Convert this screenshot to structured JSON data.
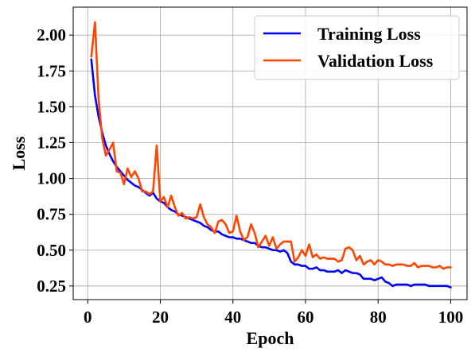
{
  "chart_data": {
    "type": "line",
    "title": "",
    "xlabel": "Epoch",
    "ylabel": "Loss",
    "xlim": [
      -4,
      104.5
    ],
    "ylim": [
      0.155,
      2.195
    ],
    "xticks": [
      0,
      20,
      40,
      60,
      80,
      100
    ],
    "yticks": [
      0.25,
      0.5,
      0.75,
      1.0,
      1.25,
      1.5,
      1.75,
      2.0
    ],
    "xtick_labels": [
      "0",
      "20",
      "40",
      "60",
      "80",
      "100"
    ],
    "ytick_labels": [
      "0.25",
      "0.50",
      "0.75",
      "1.00",
      "1.25",
      "1.50",
      "1.75",
      "2.00"
    ],
    "grid": true,
    "legend": "upper right",
    "x": [
      1,
      2,
      3,
      4,
      5,
      6,
      7,
      8,
      9,
      10,
      11,
      12,
      13,
      14,
      15,
      16,
      17,
      18,
      19,
      20,
      21,
      22,
      23,
      24,
      25,
      26,
      27,
      28,
      29,
      30,
      31,
      32,
      33,
      34,
      35,
      36,
      37,
      38,
      39,
      40,
      41,
      42,
      43,
      44,
      45,
      46,
      47,
      48,
      49,
      50,
      51,
      52,
      53,
      54,
      55,
      56,
      57,
      58,
      59,
      60,
      61,
      62,
      63,
      64,
      65,
      66,
      67,
      68,
      69,
      70,
      71,
      72,
      73,
      74,
      75,
      76,
      77,
      78,
      79,
      80,
      81,
      82,
      83,
      84,
      85,
      86,
      87,
      88,
      89,
      90,
      91,
      92,
      93,
      94,
      95,
      96,
      97,
      98,
      99,
      100
    ],
    "series": [
      {
        "name": "Training Loss",
        "color": "#0000ff",
        "values": [
          1.83,
          1.58,
          1.43,
          1.32,
          1.23,
          1.17,
          1.12,
          1.08,
          1.05,
          1.02,
          0.99,
          0.97,
          0.95,
          0.94,
          0.92,
          0.9,
          0.88,
          0.9,
          0.86,
          0.84,
          0.83,
          0.8,
          0.78,
          0.77,
          0.75,
          0.74,
          0.73,
          0.72,
          0.71,
          0.7,
          0.69,
          0.67,
          0.66,
          0.64,
          0.63,
          0.63,
          0.61,
          0.6,
          0.59,
          0.59,
          0.58,
          0.58,
          0.57,
          0.56,
          0.55,
          0.55,
          0.53,
          0.52,
          0.52,
          0.51,
          0.5,
          0.5,
          0.49,
          0.5,
          0.48,
          0.42,
          0.4,
          0.4,
          0.39,
          0.39,
          0.37,
          0.37,
          0.38,
          0.36,
          0.36,
          0.35,
          0.35,
          0.35,
          0.36,
          0.34,
          0.36,
          0.35,
          0.34,
          0.34,
          0.33,
          0.3,
          0.3,
          0.3,
          0.29,
          0.3,
          0.31,
          0.28,
          0.27,
          0.25,
          0.26,
          0.26,
          0.26,
          0.26,
          0.25,
          0.26,
          0.26,
          0.26,
          0.26,
          0.25,
          0.25,
          0.25,
          0.25,
          0.25,
          0.25,
          0.24
        ]
      },
      {
        "name": "Validation Loss",
        "color": "#ff4500",
        "values": [
          1.85,
          2.09,
          1.55,
          1.28,
          1.16,
          1.2,
          1.25,
          1.05,
          1.04,
          0.96,
          1.07,
          1.01,
          1.05,
          1.0,
          0.91,
          0.91,
          0.89,
          0.91,
          1.23,
          0.84,
          0.87,
          0.8,
          0.88,
          0.8,
          0.74,
          0.76,
          0.72,
          0.73,
          0.72,
          0.73,
          0.82,
          0.73,
          0.68,
          0.66,
          0.62,
          0.7,
          0.71,
          0.68,
          0.62,
          0.63,
          0.74,
          0.63,
          0.57,
          0.59,
          0.68,
          0.62,
          0.52,
          0.56,
          0.6,
          0.53,
          0.59,
          0.51,
          0.54,
          0.56,
          0.56,
          0.56,
          0.42,
          0.45,
          0.5,
          0.46,
          0.54,
          0.45,
          0.47,
          0.44,
          0.45,
          0.44,
          0.44,
          0.44,
          0.42,
          0.43,
          0.51,
          0.52,
          0.5,
          0.43,
          0.46,
          0.4,
          0.42,
          0.43,
          0.4,
          0.43,
          0.42,
          0.4,
          0.4,
          0.39,
          0.4,
          0.4,
          0.4,
          0.39,
          0.39,
          0.41,
          0.38,
          0.39,
          0.39,
          0.39,
          0.38,
          0.38,
          0.39,
          0.37,
          0.38,
          0.38
        ]
      }
    ]
  }
}
